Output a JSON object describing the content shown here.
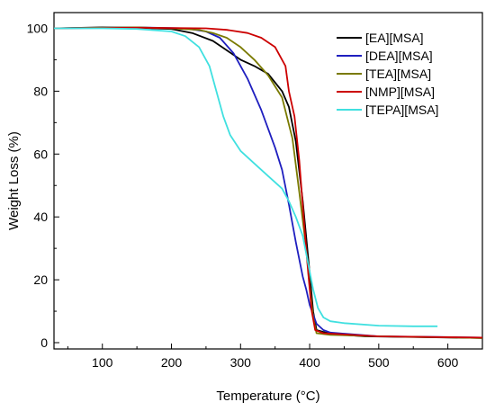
{
  "chart_data": {
    "type": "line",
    "xlabel": "Temperature (°C)",
    "ylabel": "Weight Loss (%)",
    "xlim": [
      30,
      650
    ],
    "ylim": [
      -2,
      105
    ],
    "x_ticks": [
      100,
      200,
      300,
      400,
      500,
      600
    ],
    "y_ticks": [
      0,
      20,
      40,
      60,
      80,
      100
    ],
    "grid": false,
    "legend_position": "top-right",
    "series": [
      {
        "name": "[EA][MSA]",
        "color": "#000000",
        "points": [
          [
            30,
            100
          ],
          [
            100,
            100.3
          ],
          [
            150,
            100.2
          ],
          [
            200,
            99.8
          ],
          [
            230,
            98.5
          ],
          [
            260,
            96
          ],
          [
            280,
            93
          ],
          [
            300,
            90
          ],
          [
            320,
            88
          ],
          [
            340,
            85.5
          ],
          [
            360,
            80
          ],
          [
            370,
            75
          ],
          [
            380,
            64
          ],
          [
            390,
            45
          ],
          [
            400,
            22
          ],
          [
            405,
            10
          ],
          [
            410,
            4
          ],
          [
            430,
            2.8
          ],
          [
            480,
            2
          ],
          [
            550,
            1.8
          ],
          [
            650,
            1.5
          ]
        ]
      },
      {
        "name": "[DEA][MSA]",
        "color": "#1f1fbf",
        "points": [
          [
            30,
            100
          ],
          [
            150,
            100.3
          ],
          [
            220,
            100
          ],
          [
            250,
            99
          ],
          [
            270,
            97
          ],
          [
            290,
            92
          ],
          [
            310,
            84
          ],
          [
            330,
            74
          ],
          [
            350,
            62
          ],
          [
            360,
            55
          ],
          [
            370,
            44
          ],
          [
            380,
            32
          ],
          [
            390,
            21
          ],
          [
            395,
            17
          ],
          [
            400,
            12
          ],
          [
            410,
            6
          ],
          [
            420,
            4
          ],
          [
            430,
            3.2
          ],
          [
            500,
            2
          ],
          [
            580,
            1.8
          ],
          [
            650,
            1.6
          ]
        ]
      },
      {
        "name": "[TEA][MSA]",
        "color": "#7a7a00",
        "points": [
          [
            30,
            100
          ],
          [
            100,
            100.2
          ],
          [
            150,
            100.3
          ],
          [
            200,
            100
          ],
          [
            240,
            99.5
          ],
          [
            260,
            98.5
          ],
          [
            280,
            97
          ],
          [
            300,
            94
          ],
          [
            320,
            90
          ],
          [
            340,
            85
          ],
          [
            360,
            78
          ],
          [
            375,
            65
          ],
          [
            385,
            48
          ],
          [
            395,
            30
          ],
          [
            400,
            18
          ],
          [
            405,
            8
          ],
          [
            410,
            3
          ],
          [
            430,
            2.5
          ],
          [
            500,
            2
          ],
          [
            650,
            1.5
          ]
        ]
      },
      {
        "name": "[NMP][MSA]",
        "color": "#cc0000",
        "points": [
          [
            30,
            100
          ],
          [
            150,
            100.2
          ],
          [
            250,
            100
          ],
          [
            280,
            99.5
          ],
          [
            310,
            98.5
          ],
          [
            330,
            97
          ],
          [
            350,
            94
          ],
          [
            365,
            88
          ],
          [
            370,
            80
          ],
          [
            378,
            72
          ],
          [
            385,
            58
          ],
          [
            392,
            38
          ],
          [
            398,
            22
          ],
          [
            403,
            10
          ],
          [
            408,
            4
          ],
          [
            420,
            3
          ],
          [
            500,
            2
          ],
          [
            650,
            1.6
          ]
        ]
      },
      {
        "name": "[TEPA][MSA]",
        "color": "#40e0e0",
        "points": [
          [
            30,
            100
          ],
          [
            100,
            100
          ],
          [
            150,
            99.8
          ],
          [
            200,
            99
          ],
          [
            220,
            97.5
          ],
          [
            240,
            94
          ],
          [
            255,
            88
          ],
          [
            265,
            80
          ],
          [
            275,
            72
          ],
          [
            285,
            66
          ],
          [
            300,
            61
          ],
          [
            320,
            57
          ],
          [
            340,
            53
          ],
          [
            360,
            49
          ],
          [
            370,
            45
          ],
          [
            380,
            40
          ],
          [
            390,
            34
          ],
          [
            398,
            25
          ],
          [
            405,
            17
          ],
          [
            412,
            11
          ],
          [
            420,
            8
          ],
          [
            430,
            6.8
          ],
          [
            450,
            6.2
          ],
          [
            500,
            5.4
          ],
          [
            550,
            5.2
          ],
          [
            585,
            5.2
          ]
        ]
      }
    ]
  }
}
